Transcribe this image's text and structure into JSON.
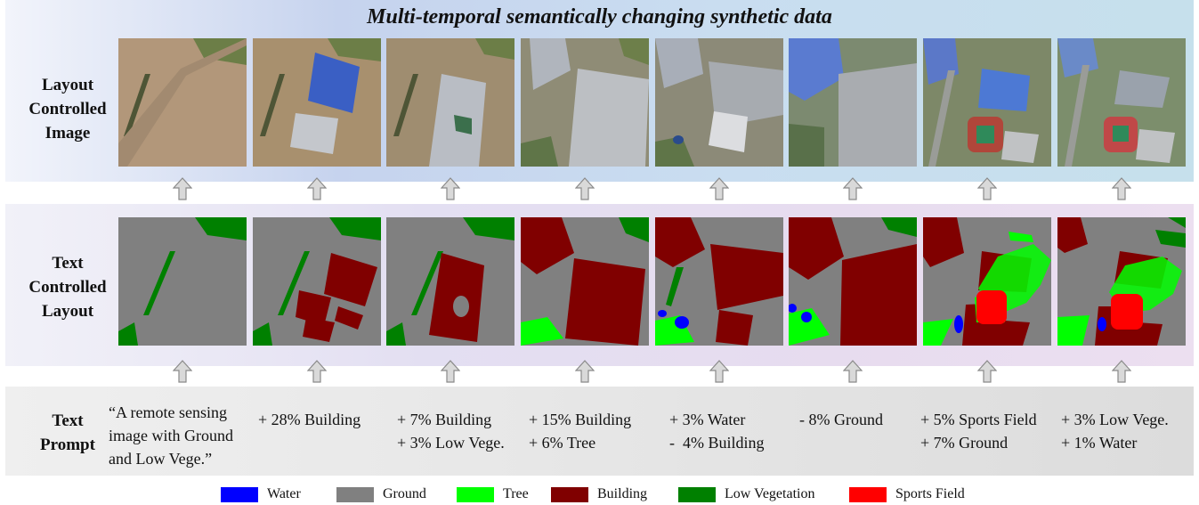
{
  "title": "Multi-temporal semantically changing synthetic data",
  "row_labels": {
    "image": [
      "Layout",
      "Controlled",
      "Image"
    ],
    "layout": [
      "Text",
      "Controlled",
      "Layout"
    ],
    "prompt": [
      "Text",
      "Prompt"
    ]
  },
  "prompts": [
    [
      "“A remote sensing",
      "image with Ground",
      "and Low Vege.”"
    ],
    [
      "+ 28% Building"
    ],
    [
      "+ 7% Building",
      "+ 3% Low Vege."
    ],
    [
      "+ 15% Building",
      "+ 6% Tree"
    ],
    [
      "+ 3% Water",
      "-  4% Building"
    ],
    [
      "- 8% Ground"
    ],
    [
      "+ 5% Sports Field",
      "+ 7% Ground"
    ],
    [
      "+ 3% Low Vege.",
      "+ 1% Water"
    ]
  ],
  "legend": [
    {
      "label": "Water",
      "color": "#0000ff"
    },
    {
      "label": "Ground",
      "color": "#808080"
    },
    {
      "label": "Tree",
      "color": "#00ff00"
    },
    {
      "label": "Building",
      "color": "#800000"
    },
    {
      "label": "Low Vegetation",
      "color": "#008000"
    },
    {
      "label": "Sports Field",
      "color": "#ff0000"
    }
  ]
}
